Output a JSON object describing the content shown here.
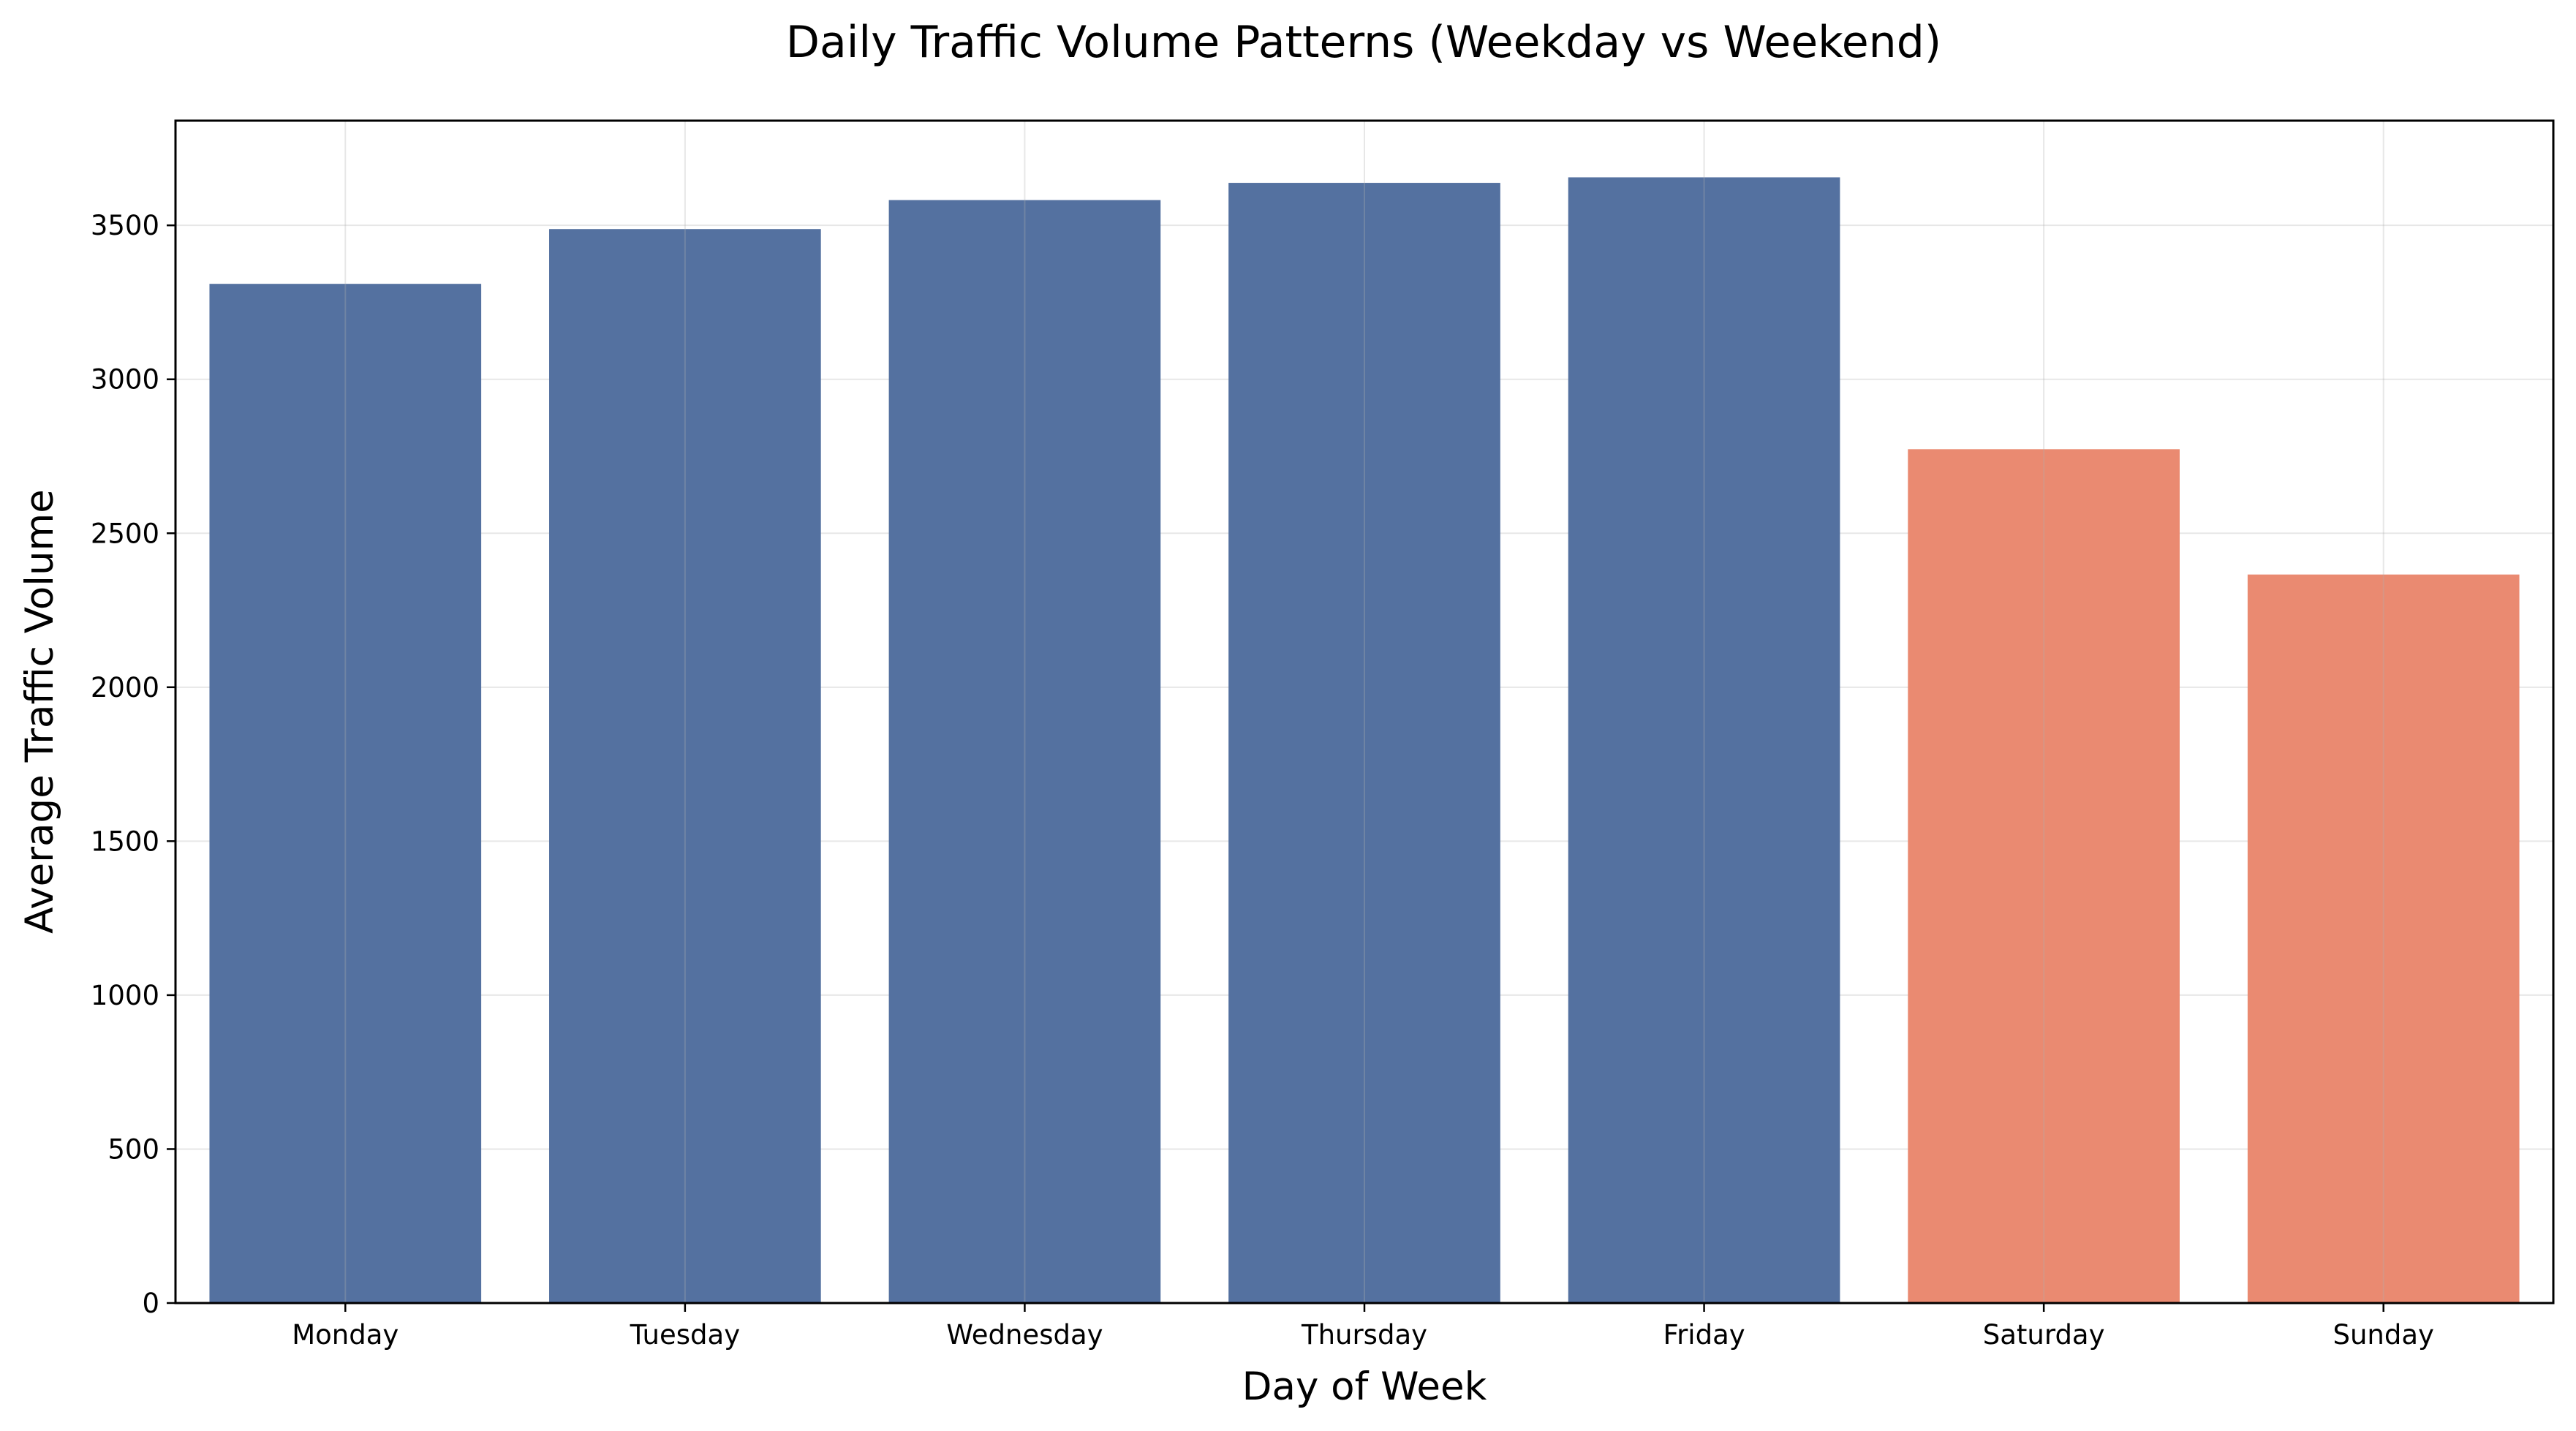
{
  "chart_data": {
    "type": "bar",
    "title": "Daily Traffic Volume Patterns (Weekday vs Weekend)",
    "xlabel": "Day of Week",
    "ylabel": "Average Traffic Volume",
    "categories": [
      "Monday",
      "Tuesday",
      "Wednesday",
      "Thursday",
      "Friday",
      "Saturday",
      "Sunday"
    ],
    "values": [
      3310,
      3488,
      3582,
      3638,
      3656,
      2773,
      2366
    ],
    "ylim": [
      0,
      3840
    ],
    "yticks": [
      0,
      500,
      1000,
      1500,
      2000,
      2500,
      3000,
      3500
    ],
    "grid": true,
    "colors": {
      "weekday": "#5471a0",
      "weekend": "#ea8a71"
    },
    "bar_colors": [
      "#5471a0",
      "#5471a0",
      "#5471a0",
      "#5471a0",
      "#5471a0",
      "#ea8a71",
      "#ea8a71"
    ]
  }
}
